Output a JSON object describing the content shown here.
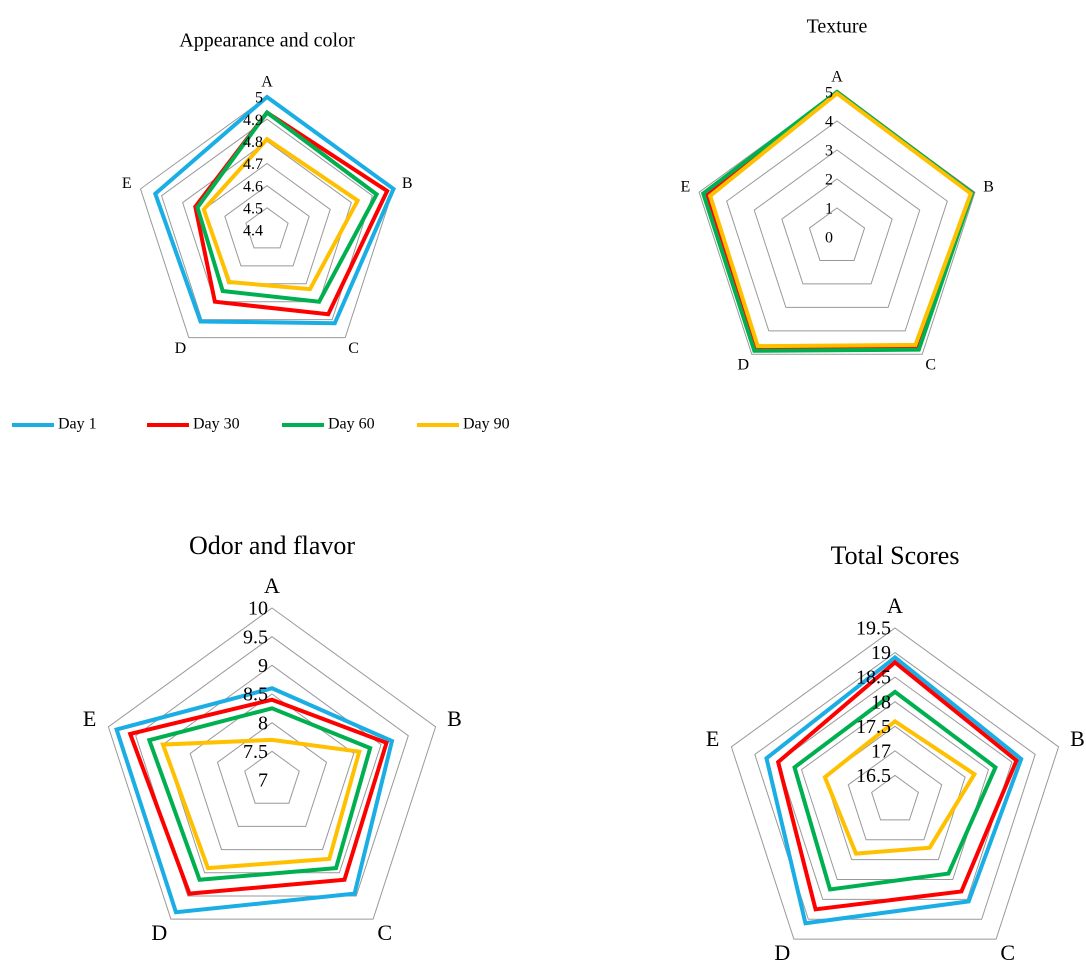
{
  "chart_data": [
    {
      "type": "radar",
      "title": "Appearance and color",
      "categories": [
        "A",
        "B",
        "C",
        "D",
        "E"
      ],
      "ylim": [
        4.4,
        5
      ],
      "yticks": [
        4.4,
        4.5,
        4.6,
        4.7,
        4.8,
        4.9,
        5
      ],
      "series": [
        {
          "name": "Day 1",
          "color": "#1aaee5",
          "values": [
            5,
            5,
            4.92,
            4.91,
            4.93
          ]
        },
        {
          "name": "Day 30",
          "color": "#ff0000",
          "values": [
            4.93,
            4.97,
            4.87,
            4.8,
            4.74
          ]
        },
        {
          "name": "Day 60",
          "color": "#00b050",
          "values": [
            4.93,
            4.92,
            4.8,
            4.74,
            4.73
          ]
        },
        {
          "name": "Day 90",
          "color": "#ffc000",
          "values": [
            4.81,
            4.83,
            4.73,
            4.69,
            4.7
          ]
        }
      ]
    },
    {
      "type": "radar",
      "title": "Texture",
      "categories": [
        "A",
        "B",
        "C",
        "D",
        "E"
      ],
      "ylim": [
        0,
        5
      ],
      "yticks": [
        0,
        1,
        2,
        3,
        4,
        5
      ],
      "series": [
        {
          "name": "Day 1",
          "color": "#1aaee5",
          "values": [
            5,
            4.9,
            4.7,
            4.75,
            4.6
          ]
        },
        {
          "name": "Day 30",
          "color": "#ff0000",
          "values": [
            5,
            4.9,
            4.7,
            4.75,
            4.7
          ]
        },
        {
          "name": "Day 60",
          "color": "#00b050",
          "values": [
            5,
            4.9,
            4.8,
            4.85,
            4.85
          ]
        },
        {
          "name": "Day 90",
          "color": "#ffc000",
          "values": [
            4.95,
            4.85,
            4.6,
            4.65,
            4.6
          ]
        }
      ]
    },
    {
      "type": "radar",
      "title": "Odor and flavor",
      "categories": [
        "A",
        "B",
        "C",
        "D",
        "E"
      ],
      "ylim": [
        7,
        10
      ],
      "yticks": [
        7,
        7.5,
        8,
        8.5,
        9,
        9.5,
        10
      ],
      "series": [
        {
          "name": "Day 1",
          "color": "#1aaee5",
          "values": [
            8.6,
            9.2,
            9.45,
            9.85,
            9.85
          ]
        },
        {
          "name": "Day 30",
          "color": "#ff0000",
          "values": [
            8.4,
            9.1,
            9.15,
            9.45,
            9.6
          ]
        },
        {
          "name": "Day 60",
          "color": "#00b050",
          "values": [
            8.25,
            8.8,
            8.9,
            9.15,
            9.25
          ]
        },
        {
          "name": "Day 90",
          "color": "#ffc000",
          "values": [
            7.7,
            8.6,
            8.7,
            8.9,
            9.0
          ]
        }
      ]
    },
    {
      "type": "radar",
      "title": "Total Scores",
      "categories": [
        "A",
        "B",
        "C",
        "D",
        "E"
      ],
      "ylim": [
        16,
        19.5
      ],
      "yticks": [
        16.5,
        17,
        17.5,
        18,
        18.5,
        19,
        19.5
      ],
      "series": [
        {
          "name": "Day 1",
          "color": "#1aaee5",
          "values": [
            18.9,
            18.7,
            18.55,
            19.1,
            18.75
          ]
        },
        {
          "name": "Day 30",
          "color": "#ff0000",
          "values": [
            18.8,
            18.6,
            18.3,
            18.75,
            18.5
          ]
        },
        {
          "name": "Day 60",
          "color": "#00b050",
          "values": [
            18.2,
            18.15,
            17.85,
            18.25,
            18.15
          ]
        },
        {
          "name": "Day 90",
          "color": "#ffc000",
          "values": [
            17.6,
            17.7,
            17.2,
            17.35,
            17.5
          ]
        }
      ]
    }
  ]
}
